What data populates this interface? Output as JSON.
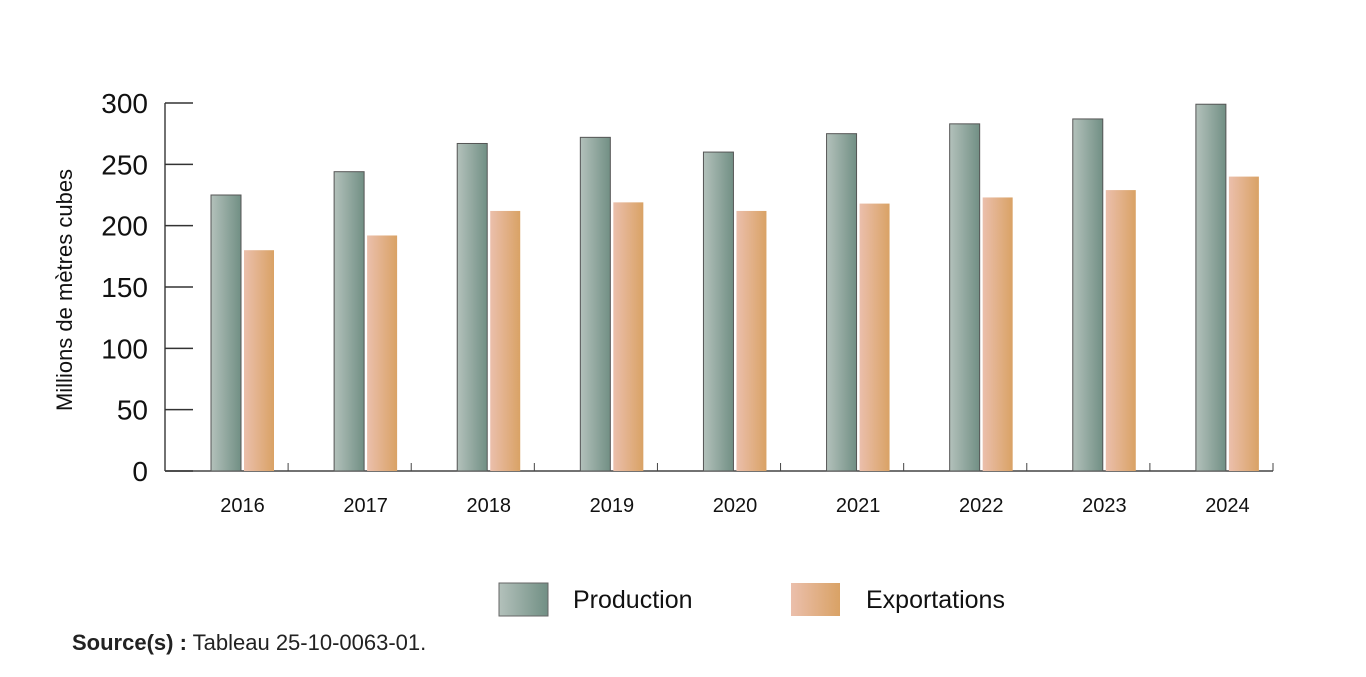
{
  "chart_data": {
    "type": "bar",
    "title": "",
    "xlabel": "",
    "ylabel": "Millions de mètres cubes",
    "ylim": [
      0,
      300
    ],
    "yticks": [
      "0",
      "50",
      "100",
      "150",
      "200",
      "250",
      "300"
    ],
    "categories": [
      "2016",
      "2017",
      "2018",
      "2019",
      "2020",
      "2021",
      "2022",
      "2023",
      "2024"
    ],
    "series": [
      {
        "name": "Production",
        "values": [
          225,
          244,
          267,
          272,
          260,
          275,
          283,
          287,
          299
        ],
        "color": "#7f978c"
      },
      {
        "name": "Exportations",
        "values": [
          180,
          192,
          212,
          219,
          212,
          218,
          223,
          229,
          240
        ],
        "color": "#dba670"
      }
    ],
    "legend": "bottom",
    "grid": false
  },
  "source": {
    "label": "Source(s) :",
    "text": "Tableau 25-10-0063-01."
  }
}
